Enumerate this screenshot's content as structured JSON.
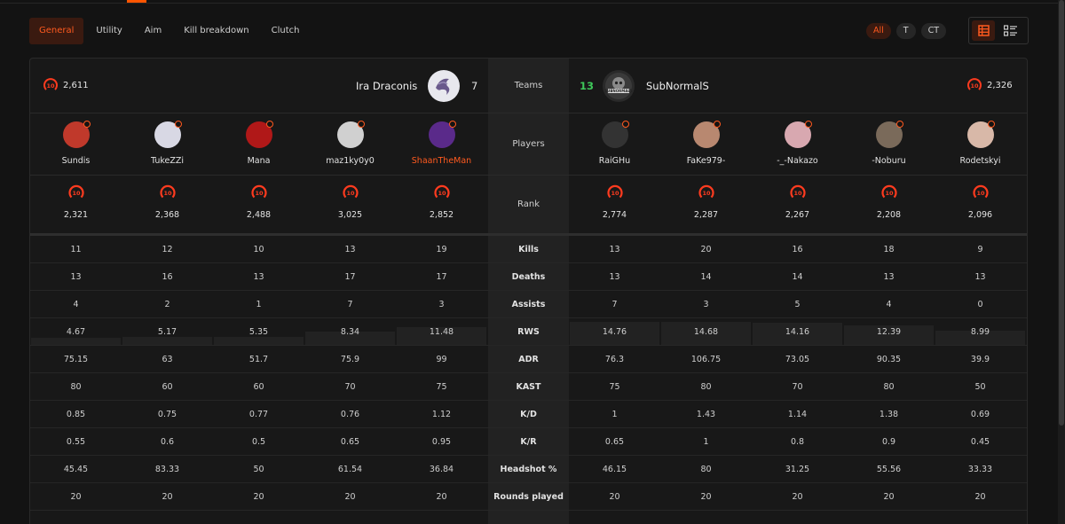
{
  "tabs": [
    "General",
    "Utility",
    "Aim",
    "Kill breakdown",
    "Clutch"
  ],
  "active_tab": "General",
  "side_filters": [
    "All",
    "T",
    "CT"
  ],
  "active_side": "All",
  "team_left": {
    "name": "Ira Draconis",
    "score": "7",
    "elo": "2,611",
    "level": "10"
  },
  "team_right": {
    "name": "SubNormalS",
    "score": "13",
    "elo": "2,326",
    "level": "10"
  },
  "labels": {
    "teams": "Teams",
    "players": "Players",
    "rank": "Rank"
  },
  "colors": {
    "accent": "#ff5a1f",
    "win": "#3ec85a",
    "lose": "#e5e5e5"
  },
  "players_left": [
    {
      "name": "Sundis",
      "elo": "2,321",
      "level": "10",
      "highlight": false
    },
    {
      "name": "TukeZZi",
      "elo": "2,368",
      "level": "10",
      "highlight": false
    },
    {
      "name": "Mana",
      "elo": "2,488",
      "level": "10",
      "highlight": false
    },
    {
      "name": "maz1ky0y0",
      "elo": "3,025",
      "level": "10",
      "highlight": false
    },
    {
      "name": "ShaanTheMan",
      "elo": "2,852",
      "level": "10",
      "highlight": true
    }
  ],
  "players_right": [
    {
      "name": "RaiGHu",
      "elo": "2,774",
      "level": "10",
      "highlight": false
    },
    {
      "name": "FaKe979-",
      "elo": "2,287",
      "level": "10",
      "highlight": false
    },
    {
      "name": "-_-Nakazo",
      "elo": "2,267",
      "level": "10",
      "highlight": false
    },
    {
      "name": "-Noburu",
      "elo": "2,208",
      "level": "10",
      "highlight": false
    },
    {
      "name": "Rodetskyi",
      "elo": "2,096",
      "level": "10",
      "highlight": false
    }
  ],
  "stats": [
    {
      "label": "Kills",
      "left": [
        "11",
        "12",
        "10",
        "13",
        "19"
      ],
      "right": [
        "13",
        "20",
        "16",
        "18",
        "9"
      ]
    },
    {
      "label": "Deaths",
      "left": [
        "13",
        "16",
        "13",
        "17",
        "17"
      ],
      "right": [
        "13",
        "14",
        "14",
        "13",
        "13"
      ]
    },
    {
      "label": "Assists",
      "left": [
        "4",
        "2",
        "1",
        "7",
        "3"
      ],
      "right": [
        "7",
        "3",
        "5",
        "4",
        "0"
      ]
    },
    {
      "label": "RWS",
      "left": [
        "4.67",
        "5.17",
        "5.35",
        "8.34",
        "11.48"
      ],
      "right": [
        "14.76",
        "14.68",
        "14.16",
        "12.39",
        "8.99"
      ],
      "bars": true
    },
    {
      "label": "ADR",
      "left": [
        "75.15",
        "63",
        "51.7",
        "75.9",
        "99"
      ],
      "right": [
        "76.3",
        "106.75",
        "73.05",
        "90.35",
        "39.9"
      ]
    },
    {
      "label": "KAST",
      "left": [
        "80",
        "60",
        "60",
        "70",
        "75"
      ],
      "right": [
        "75",
        "80",
        "70",
        "80",
        "50"
      ]
    },
    {
      "label": "K/D",
      "left": [
        "0.85",
        "0.75",
        "0.77",
        "0.76",
        "1.12"
      ],
      "right": [
        "1",
        "1.43",
        "1.14",
        "1.38",
        "0.69"
      ]
    },
    {
      "label": "K/R",
      "left": [
        "0.55",
        "0.6",
        "0.5",
        "0.65",
        "0.95"
      ],
      "right": [
        "0.65",
        "1",
        "0.8",
        "0.9",
        "0.45"
      ]
    },
    {
      "label": "Headshot %",
      "left": [
        "45.45",
        "83.33",
        "50",
        "61.54",
        "36.84"
      ],
      "right": [
        "46.15",
        "80",
        "31.25",
        "55.56",
        "33.33"
      ]
    },
    {
      "label": "Rounds played",
      "left": [
        "20",
        "20",
        "20",
        "20",
        "20"
      ],
      "right": [
        "20",
        "20",
        "20",
        "20",
        "20"
      ]
    }
  ],
  "icons": {
    "table_view": "table-grid-icon",
    "list_view": "list-view-icon",
    "level_badge": "level-10-badge-icon"
  }
}
